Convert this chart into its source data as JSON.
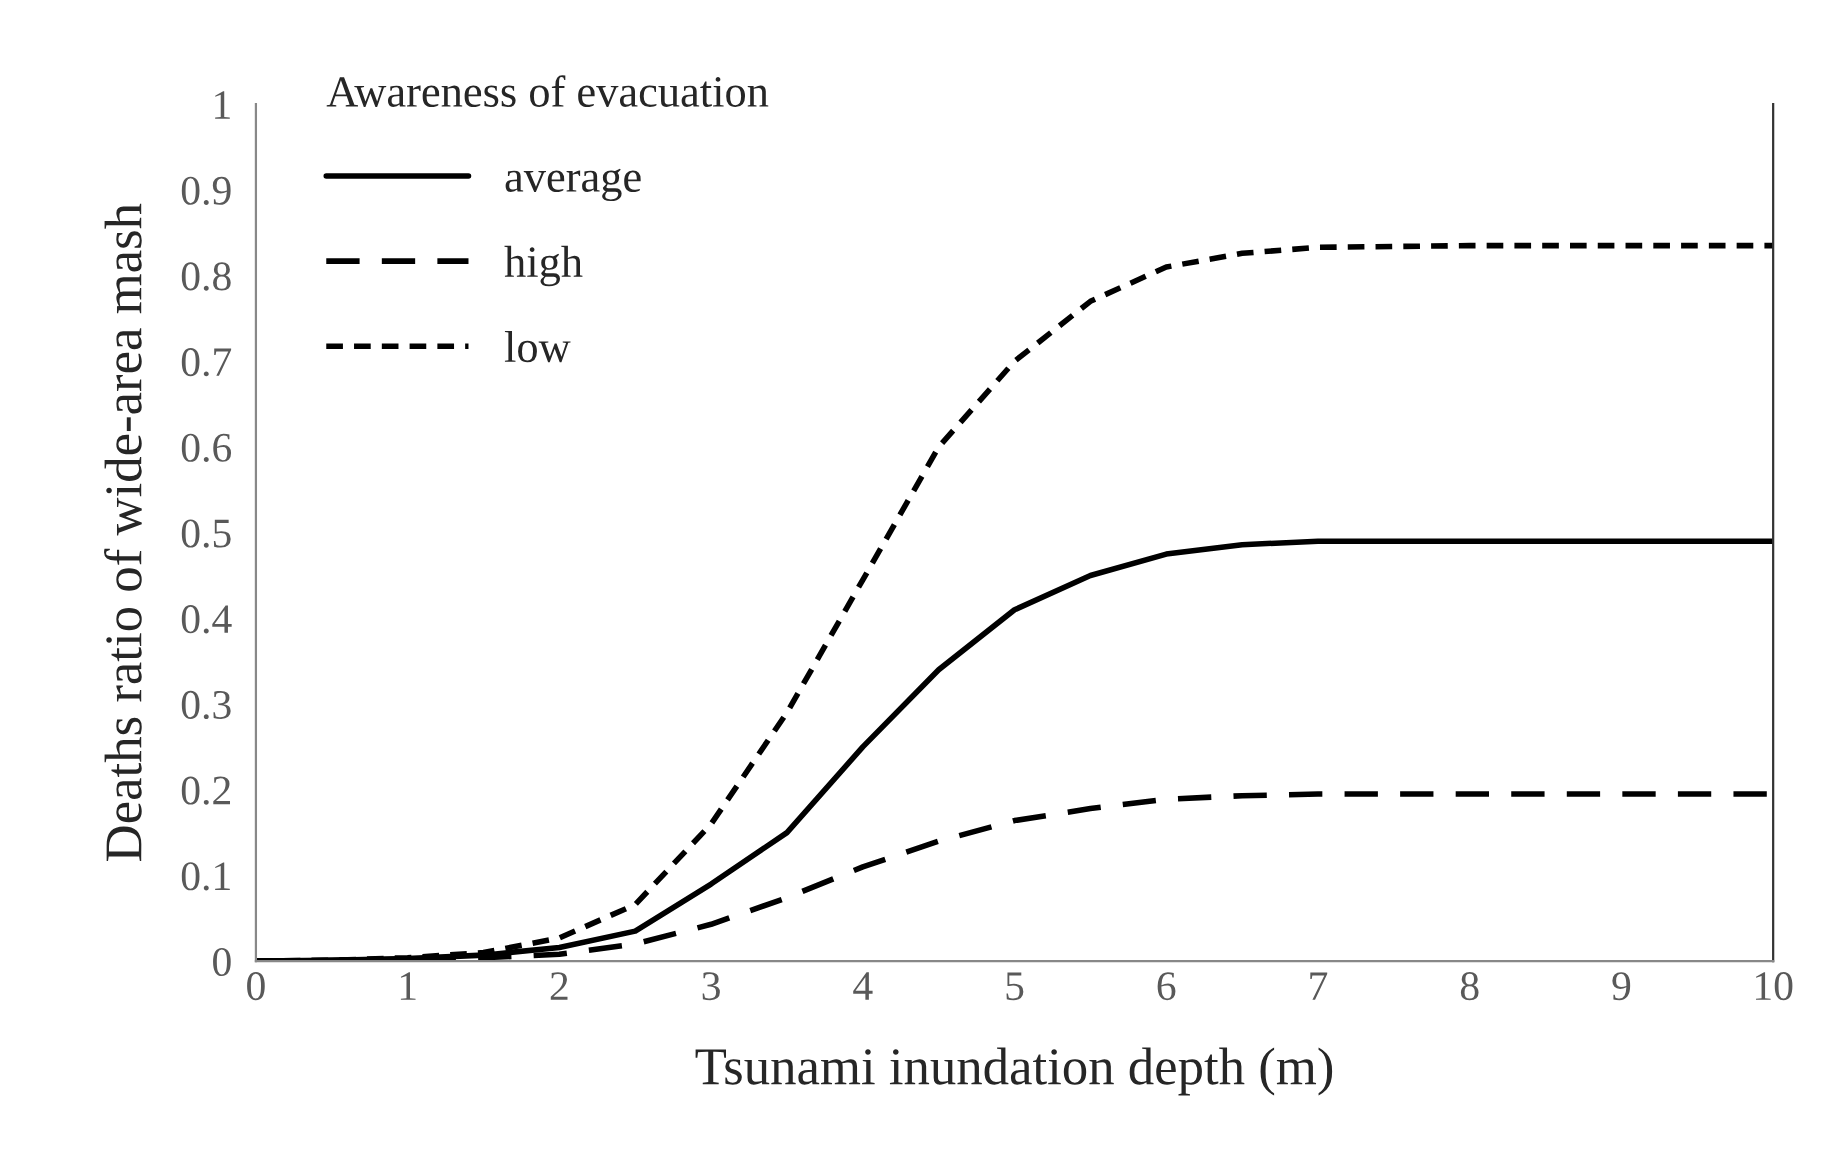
{
  "chart_data": {
    "type": "line",
    "legend_title": "Awareness of evacuation",
    "xlabel": "Tsunami inundation depth (m)",
    "ylabel": "Deaths ratio of wide-area mash",
    "x": [
      0,
      0.5,
      1,
      1.5,
      2,
      2.5,
      3,
      3.5,
      4,
      4.5,
      5,
      5.5,
      6,
      6.5,
      7,
      8,
      9,
      10
    ],
    "series": [
      {
        "name": "average",
        "color": "#000000",
        "line_style": "solid",
        "values": [
          0,
          0.001,
          0.003,
          0.007,
          0.016,
          0.035,
          0.09,
          0.15,
          0.25,
          0.34,
          0.41,
          0.45,
          0.475,
          0.486,
          0.49,
          0.49,
          0.49,
          0.49
        ]
      },
      {
        "name": "high",
        "color": "#000000",
        "line_style": "dashed",
        "values": [
          0,
          0.001,
          0.002,
          0.004,
          0.008,
          0.02,
          0.043,
          0.074,
          0.11,
          0.14,
          0.164,
          0.178,
          0.189,
          0.193,
          0.195,
          0.195,
          0.195,
          0.195
        ]
      },
      {
        "name": "low",
        "color": "#000000",
        "line_style": "dotted",
        "values": [
          0,
          0.001,
          0.004,
          0.01,
          0.027,
          0.066,
          0.16,
          0.29,
          0.445,
          0.6,
          0.7,
          0.77,
          0.81,
          0.826,
          0.833,
          0.835,
          0.835,
          0.835
        ]
      }
    ],
    "xlim": [
      0,
      10
    ],
    "xticks": [
      0,
      1,
      2,
      3,
      4,
      5,
      6,
      7,
      8,
      9,
      10
    ],
    "ylim": [
      0,
      1
    ],
    "yticks": [
      0,
      0.1,
      0.2,
      0.3,
      0.4,
      0.5,
      0.6,
      0.7,
      0.8,
      0.9,
      1
    ],
    "grid": false,
    "legend": "top left"
  }
}
